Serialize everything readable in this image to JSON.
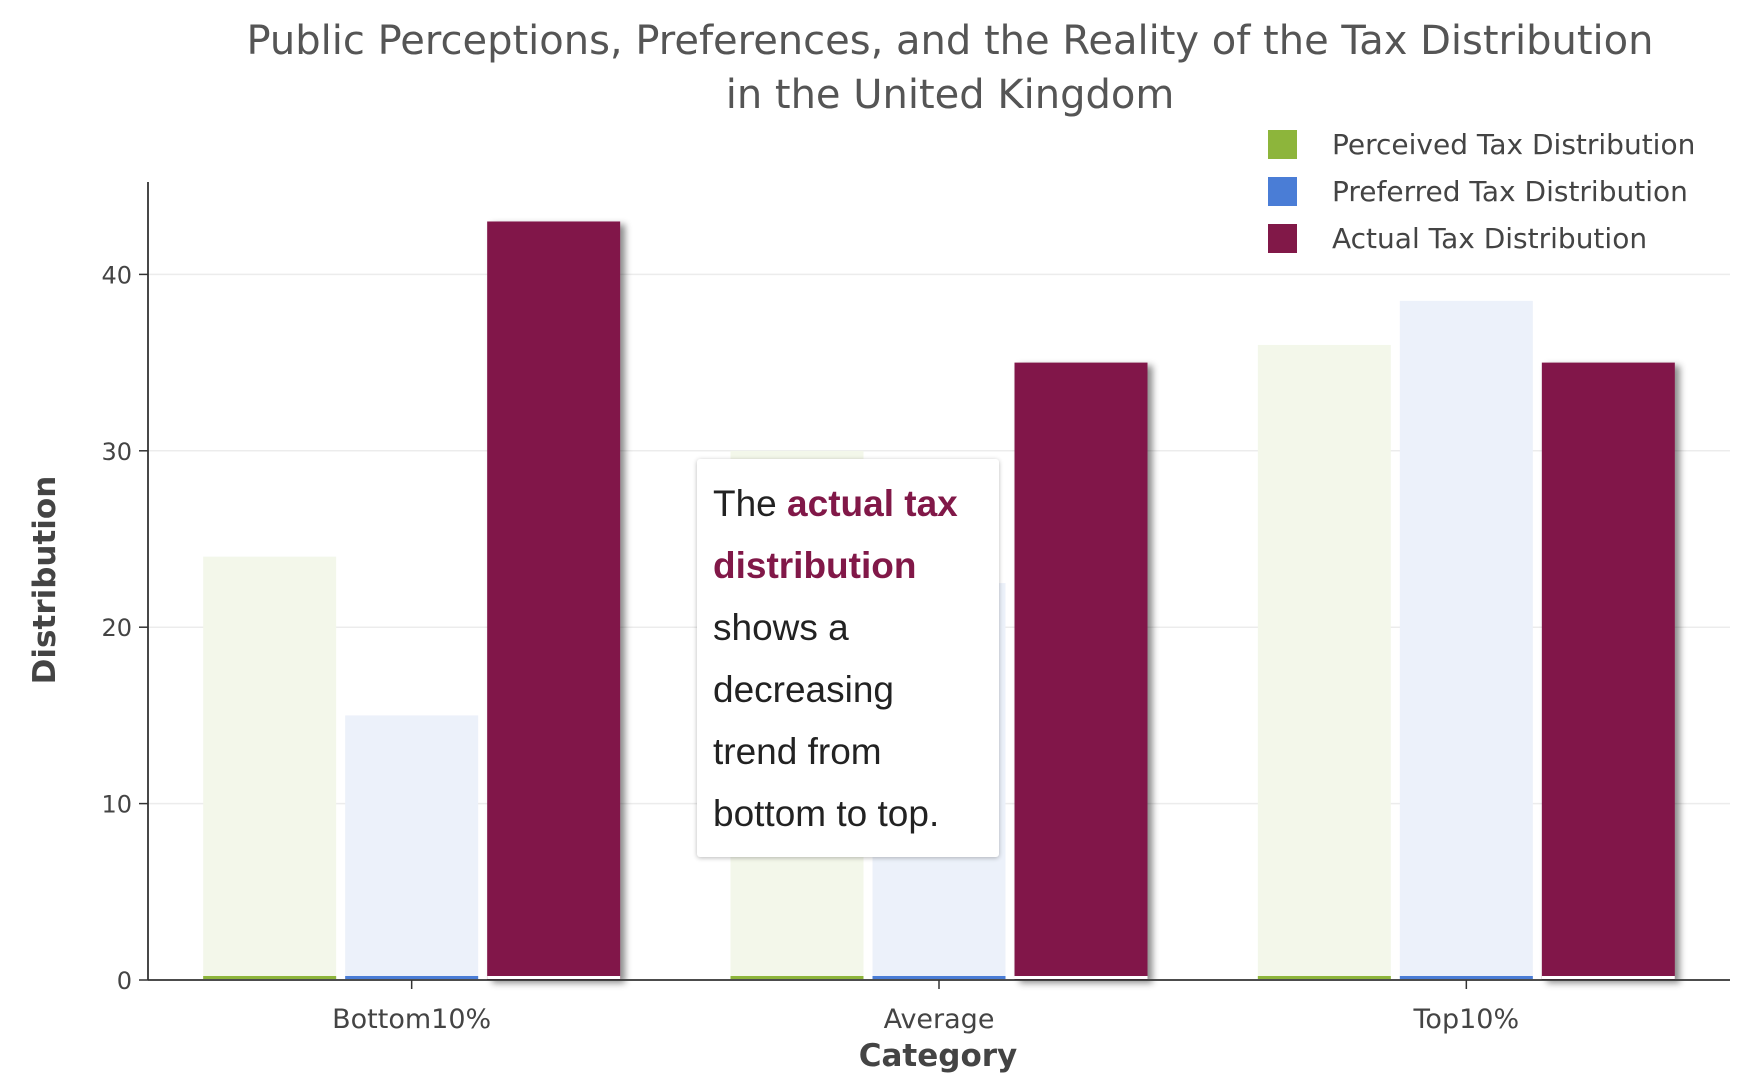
{
  "chart_data": {
    "type": "bar",
    "title_line1": "Public Perceptions, Preferences, and the Reality of the Tax Distribution",
    "title_line2": "in the United Kingdom",
    "xlabel": "Category",
    "ylabel": "Distribution",
    "categories": [
      "Bottom10%",
      "Average",
      "Top10%"
    ],
    "yticks": [
      0,
      10,
      20,
      30,
      40
    ],
    "ylim": [
      0,
      45
    ],
    "grid": true,
    "legend_position": "top-right",
    "series": [
      {
        "name": "Perceived Tax Distribution",
        "values": [
          24,
          30,
          36
        ],
        "color": "#8db53b",
        "fill": "#f3f7ea"
      },
      {
        "name": "Preferred Tax Distribution",
        "values": [
          15,
          22.5,
          38.5
        ],
        "color": "#4a7dd6",
        "fill": "#ecf1fa"
      },
      {
        "name": "Actual Tax Distribution",
        "values": [
          43,
          35,
          35
        ],
        "color": "#811848",
        "fill": "#811848"
      }
    ],
    "annotation": {
      "prefix": "The ",
      "highlight": "actual tax distribution",
      "suffix": " shows a decreasing trend from bottom to top."
    }
  }
}
